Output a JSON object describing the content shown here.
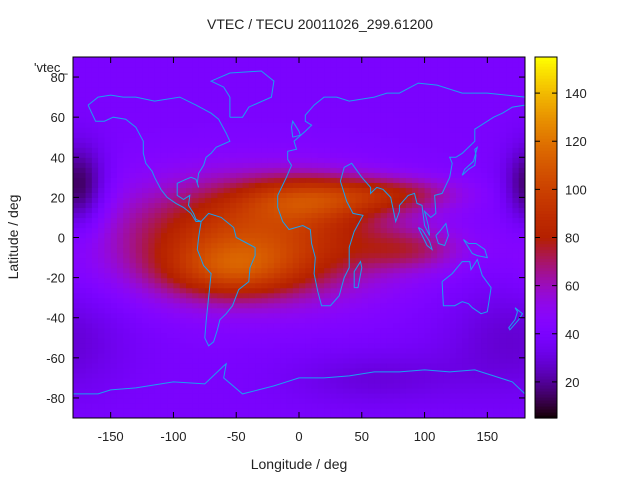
{
  "chart_data": {
    "type": "heatmap",
    "title": "VTEC / TECU 20011026_299.61200",
    "xlabel": "Longitude / deg",
    "ylabel": "Latitude / deg",
    "key_label": "'vtec_",
    "xlim": [
      -180,
      180
    ],
    "ylim": [
      -90,
      90
    ],
    "x_ticks": [
      -150,
      -100,
      -50,
      0,
      50,
      100,
      150
    ],
    "y_ticks": [
      -80,
      -60,
      -40,
      -20,
      0,
      20,
      40,
      60,
      80
    ],
    "colorbar": {
      "range": [
        5,
        155
      ],
      "ticks": [
        20,
        40,
        60,
        80,
        100,
        120,
        140
      ]
    },
    "grid_resolution": {
      "lon_step": 5,
      "lat_step": 2.5
    },
    "vtec_model": {
      "background": 40,
      "components": [
        {
          "name": "equatorial-anomaly-americas-africa",
          "lon": -35,
          "lat": 0,
          "lon_sigma": 75,
          "lat_sigma": 20,
          "amplitude": 60
        },
        {
          "name": "crest-north-africa",
          "lon": 10,
          "lat": 20,
          "lon_sigma": 40,
          "lat_sigma": 8,
          "amplitude": 35
        },
        {
          "name": "crest-south-america",
          "lon": -55,
          "lat": -17,
          "lon_sigma": 40,
          "lat_sigma": 10,
          "amplitude": 30
        },
        {
          "name": "tongue-north-indian-ocean",
          "lon": 80,
          "lat": 22,
          "lon_sigma": 35,
          "lat_sigma": 6,
          "amplitude": 25
        },
        {
          "name": "tongue-south-indian-ocean",
          "lon": 90,
          "lat": -6,
          "lon_sigma": 30,
          "lat_sigma": 7,
          "amplitude": 20
        },
        {
          "name": "night-trough-north-pacific",
          "lon": -175,
          "lat": 25,
          "lon_sigma": 15,
          "lat_sigma": 15,
          "amplitude": -30
        },
        {
          "name": "night-trough-south-pacific",
          "lon": 170,
          "lat": -50,
          "lon_sigma": 40,
          "lat_sigma": 20,
          "amplitude": -12
        },
        {
          "name": "night-trough-antarctic",
          "lon": 60,
          "lat": -70,
          "lon_sigma": 50,
          "lat_sigma": 10,
          "amplitude": -10
        }
      ]
    },
    "coastlines": [
      {
        "name": "north-america",
        "points": [
          [
            -168,
            66
          ],
          [
            -160,
            70
          ],
          [
            -150,
            71
          ],
          [
            -140,
            70
          ],
          [
            -130,
            70
          ],
          [
            -115,
            68
          ],
          [
            -95,
            70
          ],
          [
            -82,
            66
          ],
          [
            -70,
            62
          ],
          [
            -64,
            59
          ],
          [
            -58,
            52
          ],
          [
            -55,
            48
          ],
          [
            -66,
            45
          ],
          [
            -70,
            42
          ],
          [
            -74,
            40
          ],
          [
            -76,
            36
          ],
          [
            -80,
            32
          ],
          [
            -81,
            27
          ],
          [
            -80,
            25
          ],
          [
            -82,
            29
          ],
          [
            -86,
            30
          ],
          [
            -90,
            29
          ],
          [
            -97,
            27
          ],
          [
            -97,
            21
          ],
          [
            -92,
            19
          ],
          [
            -87,
            21
          ],
          [
            -88,
            16
          ],
          [
            -84,
            12
          ],
          [
            -82,
            9
          ],
          [
            -78,
            8
          ],
          [
            -82,
            8
          ],
          [
            -86,
            12
          ],
          [
            -92,
            15
          ],
          [
            -98,
            17
          ],
          [
            -105,
            20
          ],
          [
            -110,
            24
          ],
          [
            -115,
            30
          ],
          [
            -117,
            33
          ],
          [
            -122,
            37
          ],
          [
            -124,
            42
          ],
          [
            -124,
            48
          ],
          [
            -130,
            55
          ],
          [
            -138,
            59
          ],
          [
            -148,
            60
          ],
          [
            -155,
            58
          ],
          [
            -162,
            58
          ],
          [
            -165,
            62
          ],
          [
            -168,
            66
          ]
        ]
      },
      {
        "name": "greenland",
        "points": [
          [
            -55,
            60
          ],
          [
            -45,
            60
          ],
          [
            -40,
            65
          ],
          [
            -22,
            70
          ],
          [
            -20,
            78
          ],
          [
            -30,
            83
          ],
          [
            -55,
            82
          ],
          [
            -70,
            78
          ],
          [
            -60,
            75
          ],
          [
            -55,
            70
          ],
          [
            -55,
            60
          ]
        ]
      },
      {
        "name": "south-america",
        "points": [
          [
            -78,
            8
          ],
          [
            -72,
            12
          ],
          [
            -62,
            10
          ],
          [
            -52,
            5
          ],
          [
            -50,
            0
          ],
          [
            -44,
            -2
          ],
          [
            -35,
            -5
          ],
          [
            -35,
            -9
          ],
          [
            -39,
            -15
          ],
          [
            -40,
            -22
          ],
          [
            -48,
            -26
          ],
          [
            -53,
            -34
          ],
          [
            -58,
            -38
          ],
          [
            -63,
            -41
          ],
          [
            -65,
            -46
          ],
          [
            -68,
            -52
          ],
          [
            -72,
            -54
          ],
          [
            -75,
            -50
          ],
          [
            -74,
            -42
          ],
          [
            -72,
            -30
          ],
          [
            -70,
            -18
          ],
          [
            -76,
            -14
          ],
          [
            -81,
            -6
          ],
          [
            -80,
            0
          ],
          [
            -78,
            8
          ]
        ]
      },
      {
        "name": "africa-eurasia",
        "points": [
          [
            -17,
            21
          ],
          [
            -17,
            15
          ],
          [
            -13,
            8
          ],
          [
            -8,
            4
          ],
          [
            3,
            6
          ],
          [
            9,
            4
          ],
          [
            10,
            -3
          ],
          [
            13,
            -10
          ],
          [
            12,
            -18
          ],
          [
            15,
            -27
          ],
          [
            18,
            -34
          ],
          [
            25,
            -34
          ],
          [
            32,
            -29
          ],
          [
            36,
            -20
          ],
          [
            40,
            -15
          ],
          [
            40,
            -5
          ],
          [
            44,
            3
          ],
          [
            51,
            11
          ],
          [
            43,
            12
          ],
          [
            38,
            18
          ],
          [
            33,
            28
          ],
          [
            36,
            35
          ],
          [
            42,
            37
          ],
          [
            50,
            30
          ],
          [
            57,
            25
          ],
          [
            57,
            22
          ],
          [
            62,
            25
          ],
          [
            67,
            24
          ],
          [
            73,
            20
          ],
          [
            77,
            8
          ],
          [
            80,
            13
          ],
          [
            80,
            16
          ],
          [
            87,
            21
          ],
          [
            92,
            22
          ],
          [
            94,
            17
          ],
          [
            98,
            16
          ],
          [
            100,
            6
          ],
          [
            104,
            1
          ],
          [
            103,
            6
          ],
          [
            100,
            13
          ],
          [
            105,
            10
          ],
          [
            109,
            12
          ],
          [
            108,
            21
          ],
          [
            114,
            22
          ],
          [
            120,
            30
          ],
          [
            122,
            37
          ],
          [
            120,
            40
          ],
          [
            125,
            40
          ],
          [
            130,
            42
          ],
          [
            140,
            48
          ],
          [
            140,
            54
          ],
          [
            155,
            60
          ],
          [
            162,
            62
          ],
          [
            170,
            65
          ],
          [
            180,
            66
          ],
          [
            180,
            70
          ],
          [
            150,
            72
          ],
          [
            130,
            72
          ],
          [
            110,
            76
          ],
          [
            95,
            77
          ],
          [
            80,
            72
          ],
          [
            70,
            72
          ],
          [
            60,
            70
          ],
          [
            40,
            68
          ],
          [
            30,
            70
          ],
          [
            20,
            70
          ],
          [
            12,
            66
          ],
          [
            5,
            61
          ],
          [
            5,
            58
          ],
          [
            10,
            56
          ],
          [
            5,
            53
          ],
          [
            -4,
            48
          ],
          [
            -2,
            44
          ],
          [
            -9,
            43
          ],
          [
            -9,
            39
          ],
          [
            -6,
            36
          ],
          [
            -10,
            30
          ],
          [
            -17,
            21
          ]
        ]
      },
      {
        "name": "great-britain",
        "points": [
          [
            -5,
            50
          ],
          [
            1,
            51
          ],
          [
            0,
            53
          ],
          [
            -3,
            56
          ],
          [
            -5,
            58
          ],
          [
            -6,
            55
          ],
          [
            -5,
            50
          ]
        ]
      },
      {
        "name": "madagascar",
        "points": [
          [
            44,
            -25
          ],
          [
            47,
            -25
          ],
          [
            50,
            -15
          ],
          [
            49,
            -12
          ],
          [
            44,
            -17
          ],
          [
            44,
            -25
          ]
        ]
      },
      {
        "name": "australia",
        "points": [
          [
            114,
            -22
          ],
          [
            122,
            -18
          ],
          [
            130,
            -12
          ],
          [
            136,
            -12
          ],
          [
            137,
            -16
          ],
          [
            142,
            -11
          ],
          [
            146,
            -19
          ],
          [
            153,
            -25
          ],
          [
            151,
            -33
          ],
          [
            150,
            -37
          ],
          [
            145,
            -38
          ],
          [
            138,
            -35
          ],
          [
            135,
            -33
          ],
          [
            130,
            -32
          ],
          [
            124,
            -34
          ],
          [
            115,
            -34
          ],
          [
            114,
            -22
          ]
        ]
      },
      {
        "name": "japan",
        "points": [
          [
            130,
            31
          ],
          [
            135,
            34
          ],
          [
            140,
            36
          ],
          [
            141,
            41
          ],
          [
            140,
            44
          ],
          [
            142,
            45
          ],
          [
            139,
            38
          ],
          [
            132,
            34
          ],
          [
            130,
            31
          ]
        ]
      },
      {
        "name": "borneo",
        "points": [
          [
            109,
            1
          ],
          [
            112,
            3
          ],
          [
            117,
            7
          ],
          [
            119,
            1
          ],
          [
            116,
            -4
          ],
          [
            111,
            -3
          ],
          [
            109,
            1
          ]
        ]
      },
      {
        "name": "sumatra",
        "points": [
          [
            95,
            5
          ],
          [
            98,
            4
          ],
          [
            104,
            -2
          ],
          [
            106,
            -6
          ],
          [
            102,
            -4
          ],
          [
            95,
            5
          ]
        ]
      },
      {
        "name": "new-guinea",
        "points": [
          [
            131,
            -1
          ],
          [
            135,
            -3
          ],
          [
            141,
            -3
          ],
          [
            148,
            -6
          ],
          [
            150,
            -10
          ],
          [
            142,
            -9
          ],
          [
            138,
            -8
          ],
          [
            131,
            -1
          ]
        ]
      },
      {
        "name": "new-zealand",
        "points": [
          [
            172,
            -35
          ],
          [
            178,
            -38
          ],
          [
            175,
            -41
          ],
          [
            168,
            -46
          ],
          [
            167,
            -45
          ],
          [
            172,
            -41
          ],
          [
            174,
            -37
          ],
          [
            172,
            -35
          ]
        ]
      },
      {
        "name": "antarctica",
        "points": [
          [
            -180,
            -78
          ],
          [
            -160,
            -78
          ],
          [
            -150,
            -76
          ],
          [
            -130,
            -75
          ],
          [
            -100,
            -72
          ],
          [
            -75,
            -73
          ],
          [
            -60,
            -64
          ],
          [
            -58,
            -63
          ],
          [
            -60,
            -70
          ],
          [
            -45,
            -78
          ],
          [
            -20,
            -74
          ],
          [
            0,
            -70
          ],
          [
            20,
            -70
          ],
          [
            40,
            -69
          ],
          [
            60,
            -67
          ],
          [
            80,
            -67
          ],
          [
            100,
            -66
          ],
          [
            120,
            -67
          ],
          [
            140,
            -66
          ],
          [
            160,
            -70
          ],
          [
            170,
            -72
          ],
          [
            180,
            -78
          ]
        ]
      }
    ]
  }
}
